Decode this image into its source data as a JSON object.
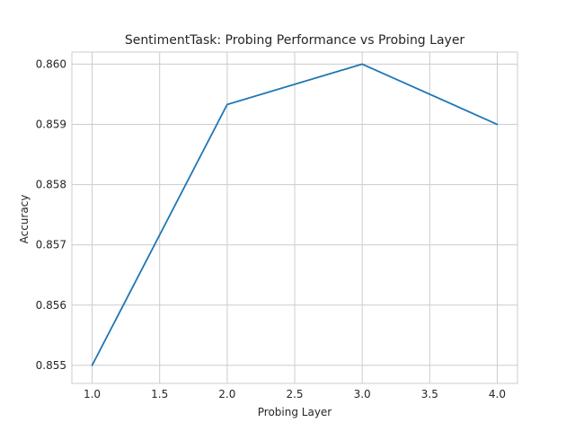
{
  "chart_data": {
    "type": "line",
    "title": "SentimentTask: Probing Performance vs Probing Layer",
    "xlabel": "Probing Layer",
    "ylabel": "Accuracy",
    "x": [
      1.0,
      2.0,
      3.0,
      4.0
    ],
    "series": [
      {
        "values": [
          0.855,
          0.85933,
          0.86,
          0.859
        ]
      }
    ],
    "xlim": [
      0.85,
      4.15
    ],
    "ylim": [
      0.8547,
      0.8602
    ],
    "xticks": [
      1.0,
      1.5,
      2.0,
      2.5,
      3.0,
      3.5,
      4.0
    ],
    "xtick_labels": [
      "1.0",
      "1.5",
      "2.0",
      "2.5",
      "3.0",
      "3.5",
      "4.0"
    ],
    "yticks": [
      0.855,
      0.856,
      0.857,
      0.858,
      0.859,
      0.86
    ],
    "ytick_labels": [
      "0.855",
      "0.856",
      "0.857",
      "0.858",
      "0.859",
      "0.860"
    ],
    "grid": true,
    "colors": {
      "line": "#1f77b4",
      "grid": "#cccccc",
      "frame": "#cccccc",
      "text": "#262626"
    }
  }
}
